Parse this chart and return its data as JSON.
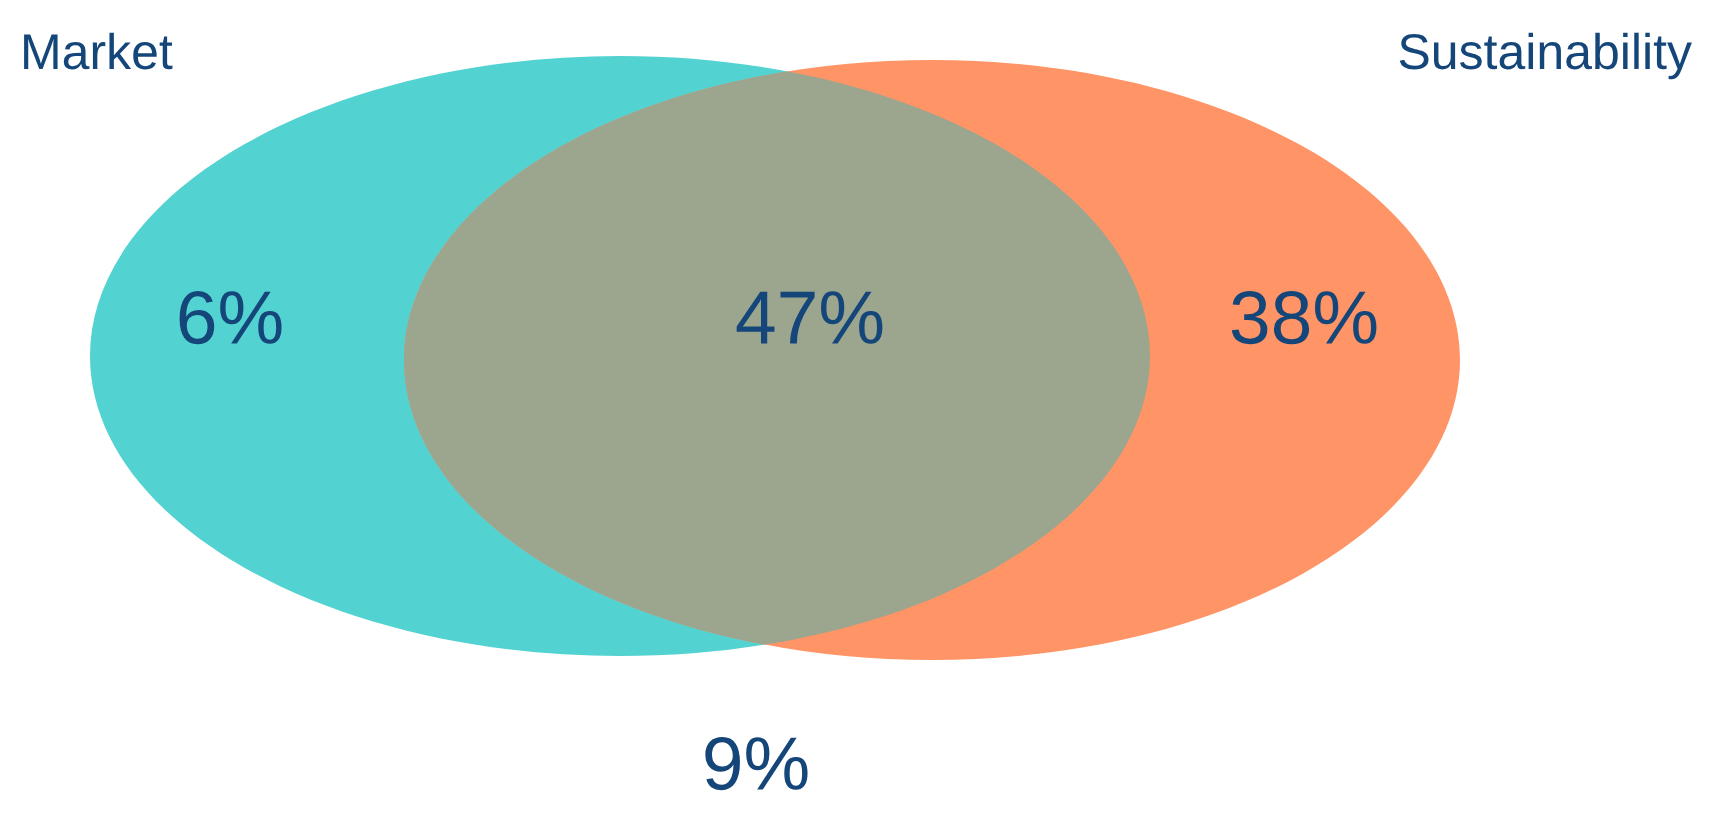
{
  "chart_data": {
    "type": "other",
    "annotations": [
      "Market",
      "Sustainability"
    ],
    "categories": [
      null,
      null,
      null,
      null
    ],
    "values": [
      6,
      47,
      38,
      9
    ],
    "colors": [
      "#52d2d0",
      "#9ca58e",
      "#ff9466",
      "#ffffff"
    ],
    "value_labels": [
      "6%",
      "47%",
      "38%",
      "9%"
    ]
  }
}
